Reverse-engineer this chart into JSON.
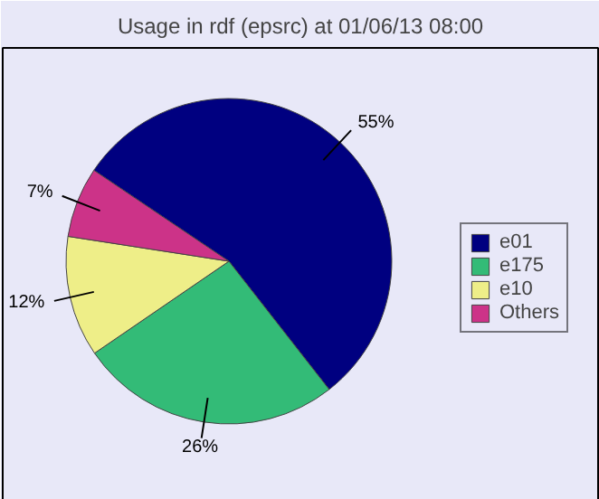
{
  "chart_data": {
    "type": "pie",
    "title": "Usage in rdf (epsrc) at 01/06/13 08:00",
    "categories": [
      "e01",
      "e175",
      "e10",
      "Others"
    ],
    "values": [
      55,
      26,
      12,
      7
    ],
    "colors": [
      "#000080",
      "#33bb77",
      "#eeee88",
      "#cc3388"
    ],
    "value_labels": [
      "55%",
      "26%",
      "12%",
      "7%"
    ],
    "legend": "right"
  }
}
